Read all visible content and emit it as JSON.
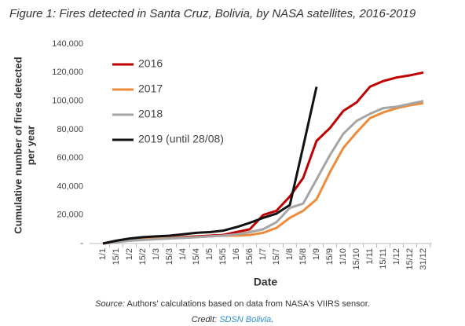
{
  "chart_data": {
    "type": "line",
    "title": "Figure 1: Fires detected in Santa Cruz, Bolivia, by NASA satellites, 2016-2019",
    "xlabel": "Date",
    "ylabel": [
      "Cumulative number of fires detected",
      "per year"
    ],
    "categories": [
      "1/1",
      "15/1",
      "1/2",
      "15/2",
      "1/3",
      "15/3",
      "1/4",
      "15/4",
      "1/5",
      "15/5",
      "1/6",
      "15/6",
      "1/7",
      "15/7",
      "1/8",
      "15/8",
      "1/9",
      "15/9",
      "1/10",
      "15/10",
      "1/11",
      "15/11",
      "1/12",
      "15/12",
      "31/12"
    ],
    "series": [
      {
        "name": "2016",
        "color": "#c00000",
        "values": [
          0,
          1000,
          2500,
          3000,
          3500,
          4000,
          4500,
          5000,
          5500,
          6000,
          8000,
          10000,
          20000,
          23000,
          33000,
          46000,
          72000,
          81000,
          93000,
          99000,
          110000,
          114000,
          116500,
          118000,
          120000
        ]
      },
      {
        "name": "2017",
        "color": "#ed8b3a",
        "values": [
          0,
          1500,
          2500,
          3000,
          3500,
          4000,
          4000,
          4500,
          5000,
          5500,
          5500,
          6000,
          7500,
          11000,
          18000,
          23000,
          31000,
          50000,
          67000,
          78000,
          88000,
          92000,
          95000,
          97000,
          98500
        ]
      },
      {
        "name": "2018",
        "color": "#a5a5a5",
        "values": [
          0,
          1000,
          2000,
          2500,
          3000,
          3500,
          4000,
          4500,
          5000,
          5500,
          6500,
          8000,
          10000,
          15000,
          25000,
          28000,
          45000,
          62000,
          77000,
          86000,
          91000,
          95000,
          96000,
          98000,
          100000
        ]
      },
      {
        "name": "2019 (until 28/08)",
        "color": "#111111",
        "values": [
          0,
          2000,
          3500,
          4500,
          5000,
          5500,
          6500,
          7500,
          8000,
          9000,
          11500,
          14500,
          18000,
          21000,
          27000,
          68000,
          110000,
          null,
          null,
          null,
          null,
          null,
          null,
          null,
          null
        ]
      }
    ],
    "ylim": [
      0,
      140000
    ],
    "yticks": [
      {
        "value": 0,
        "label": "-"
      },
      {
        "value": 20000,
        "label": "20,000"
      },
      {
        "value": 40000,
        "label": "40,000"
      },
      {
        "value": 60000,
        "label": "60,000"
      },
      {
        "value": 80000,
        "label": "80,000"
      },
      {
        "value": 100000,
        "label": "100,000"
      },
      {
        "value": 120000,
        "label": "120,000"
      },
      {
        "value": 140000,
        "label": "140,000"
      }
    ],
    "grid": false,
    "legend": "upper left",
    "source": {
      "label": "Source:",
      "text": "Authors' calculations based on data from NASA's VIIRS sensor."
    },
    "credit": {
      "label": "Credit:",
      "link": "SDSN Bolivia",
      "end": "."
    }
  }
}
